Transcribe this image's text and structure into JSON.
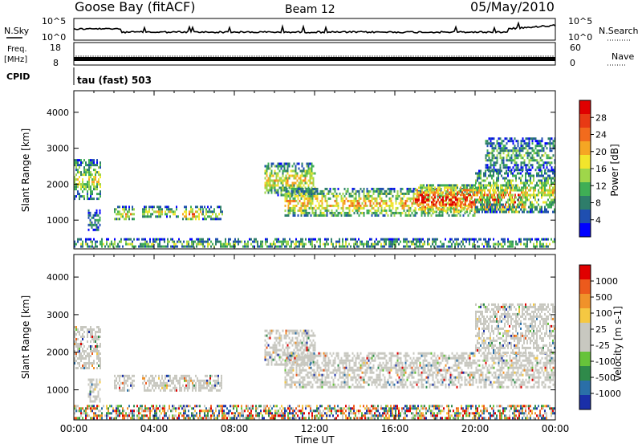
{
  "header": {
    "station": "Goose Bay (fitACF)",
    "beam": "Beam 12",
    "date": "05/May/2010"
  },
  "top_panels": {
    "nsky_label": "N.Sky",
    "nsky_ticks": [
      "10^5",
      "10^0"
    ],
    "nsearch_label": "N.Search",
    "nsearch_ticks": [
      "10^5",
      "10^0"
    ],
    "freq_label_1": "Freq.",
    "freq_label_2": "[MHz]",
    "freq_ticks": [
      "18",
      "8"
    ],
    "nave_label": "Nave",
    "nave_ticks": [
      "60",
      "0"
    ],
    "cpid_label": "CPID",
    "cpid_text": "tau (fast) 503"
  },
  "colors": {
    "power_scale": [
      "#0000ff",
      "#1f4fb0",
      "#2e7d6a",
      "#3fae55",
      "#9fd64a",
      "#f2e52c",
      "#f5a623",
      "#f26b1d",
      "#e83a14",
      "#e00000"
    ],
    "velocity_scale": [
      "#1a2fa8",
      "#2a6fa8",
      "#2f8a4a",
      "#66c33a",
      "#c8c8c0",
      "#c8c8c0",
      "#f5c842",
      "#f0922a",
      "#ec5a1c",
      "#e00000"
    ]
  },
  "chart_data": [
    {
      "type": "heatmap",
      "name": "power",
      "xlabel": "Time UT",
      "ylabel": "Slant Range [km]",
      "x_ticks": [
        "00:00",
        "04:00",
        "08:00",
        "12:00",
        "16:00",
        "20:00",
        "00:00"
      ],
      "y_ticks": [
        1000,
        2000,
        3000,
        4000
      ],
      "ylim": [
        200,
        4600
      ],
      "xlim_hours": [
        0,
        24
      ],
      "colorbar_label": "Power [dB]",
      "colorbar_ticks": [
        "28",
        "24",
        "20",
        "16",
        "12",
        "8",
        "4"
      ],
      "regions": [
        {
          "t0": 0.0,
          "t1": 1.3,
          "r0": 1600,
          "r1": 2700,
          "level": 0.45
        },
        {
          "t0": 0.7,
          "t1": 1.3,
          "r0": 700,
          "r1": 1300,
          "level": 0.25
        },
        {
          "t0": 2.0,
          "t1": 3.0,
          "r0": 1000,
          "r1": 1400,
          "level": 0.5
        },
        {
          "t0": 3.4,
          "t1": 5.2,
          "r0": 1100,
          "r1": 1400,
          "level": 0.45
        },
        {
          "t0": 5.4,
          "t1": 6.4,
          "r0": 1000,
          "r1": 1400,
          "level": 0.6
        },
        {
          "t0": 6.4,
          "t1": 7.4,
          "r0": 1000,
          "r1": 1400,
          "level": 0.35
        },
        {
          "t0": 9.5,
          "t1": 12.0,
          "r0": 1700,
          "r1": 2600,
          "level": 0.5
        },
        {
          "t0": 10.5,
          "t1": 20.0,
          "r0": 1100,
          "r1": 1900,
          "level": 0.55
        },
        {
          "t0": 17.0,
          "t1": 22.5,
          "r0": 1200,
          "r1": 2000,
          "level": 0.85
        },
        {
          "t0": 20.0,
          "t1": 24.0,
          "r0": 1200,
          "r1": 2400,
          "level": 0.45
        },
        {
          "t0": 20.5,
          "t1": 24.0,
          "r0": 2400,
          "r1": 3300,
          "level": 0.3
        },
        {
          "t0": 0.0,
          "t1": 24.0,
          "r0": 250,
          "r1": 500,
          "level": 0.35
        }
      ]
    },
    {
      "type": "heatmap",
      "name": "velocity",
      "xlabel": "Time UT",
      "ylabel": "Slant Range [km]",
      "x_ticks": [
        "00:00",
        "04:00",
        "08:00",
        "12:00",
        "16:00",
        "20:00",
        "00:00"
      ],
      "y_ticks": [
        1000,
        2000,
        3000,
        4000
      ],
      "ylim": [
        200,
        4600
      ],
      "xlim_hours": [
        0,
        24
      ],
      "colorbar_label": "Velocity [m s-1]",
      "colorbar_ticks": [
        "1000",
        "500",
        "100",
        "25",
        "-25",
        "-100",
        "-500",
        "-1000"
      ],
      "regions": [
        {
          "t0": 0.0,
          "t1": 1.3,
          "r0": 1600,
          "r1": 2700,
          "level": 0.5
        },
        {
          "t0": 0.7,
          "t1": 1.3,
          "r0": 700,
          "r1": 1300,
          "level": 0.5
        },
        {
          "t0": 2.0,
          "t1": 3.0,
          "r0": 1000,
          "r1": 1400,
          "level": 0.5
        },
        {
          "t0": 3.4,
          "t1": 7.4,
          "r0": 1000,
          "r1": 1400,
          "level": 0.5
        },
        {
          "t0": 9.5,
          "t1": 12.0,
          "r0": 1700,
          "r1": 2600,
          "level": 0.5
        },
        {
          "t0": 10.5,
          "t1": 24.0,
          "r0": 1100,
          "r1": 2000,
          "level": 0.5
        },
        {
          "t0": 20.0,
          "t1": 24.0,
          "r0": 2000,
          "r1": 3300,
          "level": 0.5
        },
        {
          "t0": 0.0,
          "t1": 24.0,
          "r0": 250,
          "r1": 600,
          "level": 0.3
        }
      ]
    }
  ]
}
